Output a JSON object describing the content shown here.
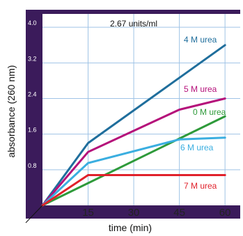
{
  "chart_data": {
    "type": "line",
    "annotation": "2.67 units/ml",
    "xlabel": "time (min)",
    "ylabel": "absorbance (260 nm)",
    "x_ticks": [
      "15",
      "30",
      "45",
      "60"
    ],
    "y_ticks": [
      "0.8",
      "1.6",
      "2.4",
      "3.2",
      "4.0"
    ],
    "xlim": [
      0,
      65
    ],
    "ylim": [
      0,
      4.3
    ],
    "grid": true,
    "series": [
      {
        "name": "4 M urea",
        "color": "#1f6e9c",
        "x": [
          0,
          15,
          60
        ],
        "y": [
          0,
          1.4,
          3.6
        ]
      },
      {
        "name": "5 M urea",
        "color": "#b5117a",
        "x": [
          0,
          15,
          45,
          60
        ],
        "y": [
          0,
          1.2,
          2.15,
          2.4
        ]
      },
      {
        "name": "0 M urea",
        "color": "#2e9a3a",
        "x": [
          0,
          60
        ],
        "y": [
          0,
          2.0
        ]
      },
      {
        "name": "6 M urea",
        "color": "#3aaee0",
        "x": [
          0,
          15,
          45,
          60
        ],
        "y": [
          0,
          0.95,
          1.48,
          1.52
        ]
      },
      {
        "name": "7 M urea",
        "color": "#e0212b",
        "x": [
          0,
          15,
          60
        ],
        "y": [
          0,
          0.68,
          0.68
        ]
      }
    ]
  }
}
